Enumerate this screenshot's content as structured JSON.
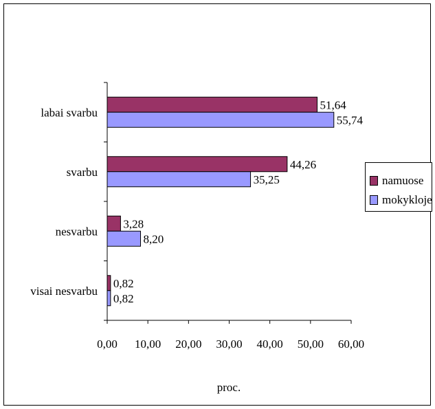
{
  "chart_data": {
    "type": "bar",
    "orientation": "horizontal",
    "categories": [
      "labai svarbu",
      "svarbu",
      "nesvarbu",
      "visai nesvarbu"
    ],
    "series": [
      {
        "name": "namuose",
        "values": [
          51.64,
          44.26,
          3.28,
          0.82
        ],
        "labels": [
          "51,64",
          "44,26",
          "3,28",
          "0,82"
        ],
        "color": "#993366"
      },
      {
        "name": "mokykloje",
        "values": [
          55.74,
          35.25,
          8.2,
          0.82
        ],
        "labels": [
          "55,74",
          "35,25",
          "8,20",
          "0,82"
        ],
        "color": "#9999ff"
      }
    ],
    "xlabel": "proc.",
    "xlim": [
      0,
      60
    ],
    "xticks": [
      "0,00",
      "10,00",
      "20,00",
      "30,00",
      "40,00",
      "50,00",
      "60,00"
    ],
    "grid": false,
    "legend_position": "right"
  }
}
